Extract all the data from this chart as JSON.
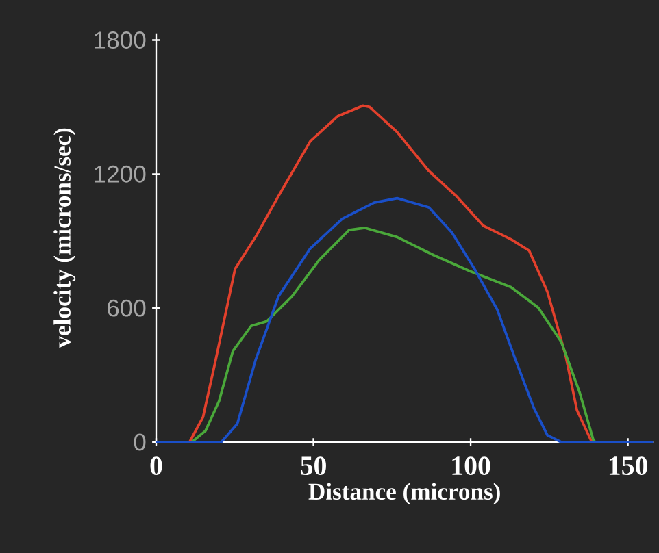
{
  "chart_data": {
    "type": "line",
    "xlabel": "Distance (microns)",
    "ylabel": "velocity (microns/sec)",
    "xlim": [
      0,
      158
    ],
    "ylim": [
      0,
      1830
    ],
    "xticks": [
      0,
      50,
      100,
      150
    ],
    "yticks": [
      0,
      600,
      1200,
      1800
    ],
    "grid": false,
    "marker": "none",
    "line_style": "solid",
    "series": [
      {
        "color": "#e2402c",
        "x": [
          0,
          10.6,
          14.9,
          18.6,
          25.1,
          31.6,
          38.9,
          49,
          57.7,
          65.7,
          67.9,
          76.6,
          86.7,
          95.4,
          104,
          112.8,
          118.6,
          124.4,
          130.2,
          133.8,
          138.2,
          139
        ],
        "values": [
          0,
          0,
          112,
          347,
          776,
          918,
          1102,
          1347,
          1459,
          1506,
          1500,
          1388,
          1214,
          1102,
          969,
          908,
          857,
          673,
          388,
          143,
          10,
          0
        ]
      },
      {
        "color": "#4aa83a",
        "x": [
          0,
          11.3,
          15.7,
          20,
          24.4,
          30.2,
          35.2,
          43.2,
          51.9,
          61.3,
          66.4,
          76.6,
          88.2,
          99.8,
          112.8,
          121.5,
          128.8,
          134.6,
          139,
          139.6
        ],
        "values": [
          0,
          0,
          51,
          184,
          408,
          520,
          541,
          653,
          816,
          949,
          959,
          918,
          837,
          765,
          694,
          602,
          449,
          225,
          10,
          0
        ]
      },
      {
        "color": "#1a4fc8",
        "x": [
          0,
          20.7,
          25.8,
          31.6,
          38.9,
          49,
          59.2,
          69.3,
          76.6,
          86.7,
          94,
          101.2,
          108.5,
          114.3,
          120.1,
          124.4,
          128.8,
          158
        ],
        "values": [
          0,
          0,
          82,
          367,
          653,
          867,
          1000,
          1072,
          1092,
          1051,
          939,
          776,
          592,
          367,
          153,
          31,
          0,
          0
        ]
      }
    ]
  }
}
